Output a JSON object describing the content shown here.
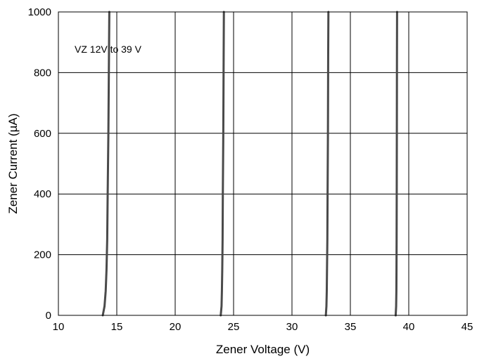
{
  "chart_data": {
    "type": "line",
    "title": "",
    "xlabel": "Zener Voltage (V)",
    "ylabel": "Zener Current (µA)",
    "xlim": [
      10,
      45
    ],
    "ylim": [
      0,
      1000
    ],
    "x_ticks": [
      10,
      15,
      20,
      25,
      30,
      35,
      40,
      45
    ],
    "y_ticks": [
      0,
      200,
      400,
      600,
      800,
      1000
    ],
    "x_tick_labels": [
      "10",
      "15",
      "20",
      "25",
      "30",
      "35",
      "40",
      "45"
    ],
    "y_tick_labels": [
      "0",
      "200",
      "400",
      "600",
      "800",
      "1000"
    ],
    "grid": true,
    "legend": "none",
    "annotation": "VZ 12V to 39 V",
    "line_color": "#4a4a4a",
    "series": [
      {
        "x": [
          13.8,
          13.95,
          14.05,
          14.12,
          14.18,
          14.22,
          14.28,
          14.33,
          14.36
        ],
        "y": [
          0,
          30,
          80,
          150,
          250,
          400,
          600,
          850,
          1000
        ]
      },
      {
        "x": [
          23.9,
          23.97,
          24.0,
          24.03,
          24.06,
          24.08,
          24.12,
          24.15,
          24.17
        ],
        "y": [
          0,
          30,
          80,
          150,
          250,
          400,
          600,
          850,
          1000
        ]
      },
      {
        "x": [
          32.9,
          32.95,
          32.98,
          33.0,
          33.03,
          33.05,
          33.08,
          33.1,
          33.12
        ],
        "y": [
          0,
          30,
          80,
          150,
          250,
          400,
          600,
          850,
          1000
        ]
      },
      {
        "x": [
          38.88,
          38.92,
          38.94,
          38.95,
          38.96,
          38.97,
          38.98,
          38.99,
          39.0
        ],
        "y": [
          0,
          30,
          80,
          150,
          250,
          400,
          600,
          850,
          1000
        ]
      }
    ]
  }
}
